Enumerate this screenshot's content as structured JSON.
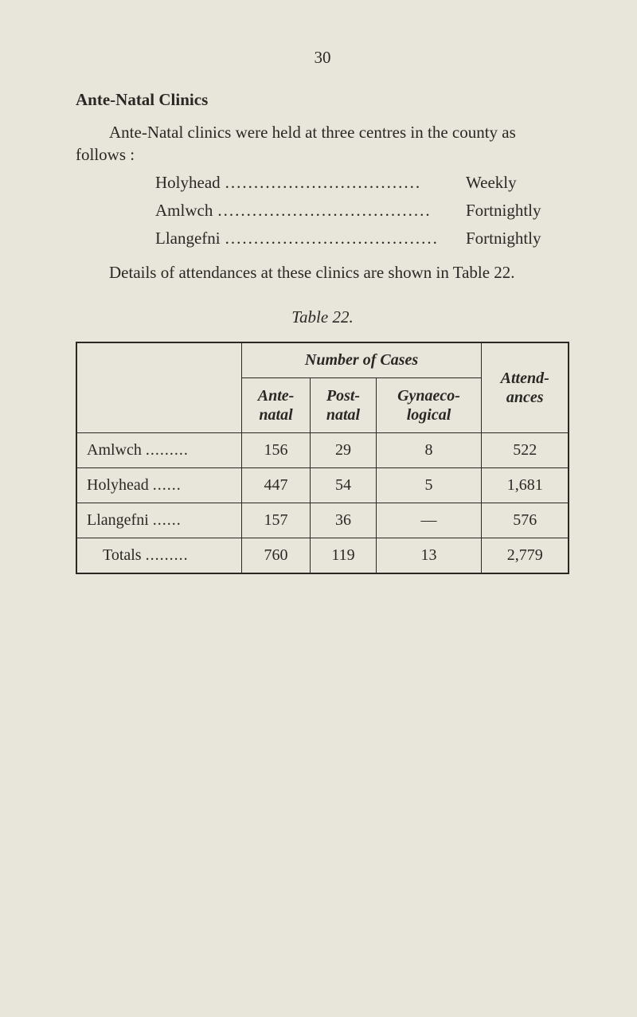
{
  "page_number": "30",
  "section_title": "Ante-Natal Clinics",
  "intro_text_1": "Ante-Natal clinics were held at three centres in the county as follows :",
  "schedule": [
    {
      "place": "Holyhead",
      "frequency": "Weekly"
    },
    {
      "place": "Amlwch",
      "frequency": "Fortnightly"
    },
    {
      "place": "Llangefni",
      "frequency": "Fortnightly"
    }
  ],
  "details_text": "Details of attendances at these clinics are shown in Table 22.",
  "table_caption": "Table 22.",
  "table": {
    "super_header": "Number of Cases",
    "col_headers": {
      "ante": "Ante-\nnatal",
      "post": "Post-\nnatal",
      "gyn": "Gynaeco-\nlogical",
      "attend": "Attend-\nances"
    },
    "rows": [
      {
        "label": "Amlwch",
        "ante": "156",
        "post": "29",
        "gyn": "8",
        "attend": "522"
      },
      {
        "label": "Holyhead",
        "ante": "447",
        "post": "54",
        "gyn": "5",
        "attend": "1,681"
      },
      {
        "label": "Llangefni",
        "ante": "157",
        "post": "36",
        "gyn": "—",
        "attend": "576"
      }
    ],
    "totals": {
      "label": "Totals",
      "ante": "760",
      "post": "119",
      "gyn": "13",
      "attend": "2,779"
    }
  },
  "colors": {
    "background": "#e8e6db",
    "text": "#2a2825",
    "border": "#2a2825"
  },
  "typography": {
    "body_font": "Times New Roman",
    "body_size_pt": 21,
    "italic_headers": true
  }
}
